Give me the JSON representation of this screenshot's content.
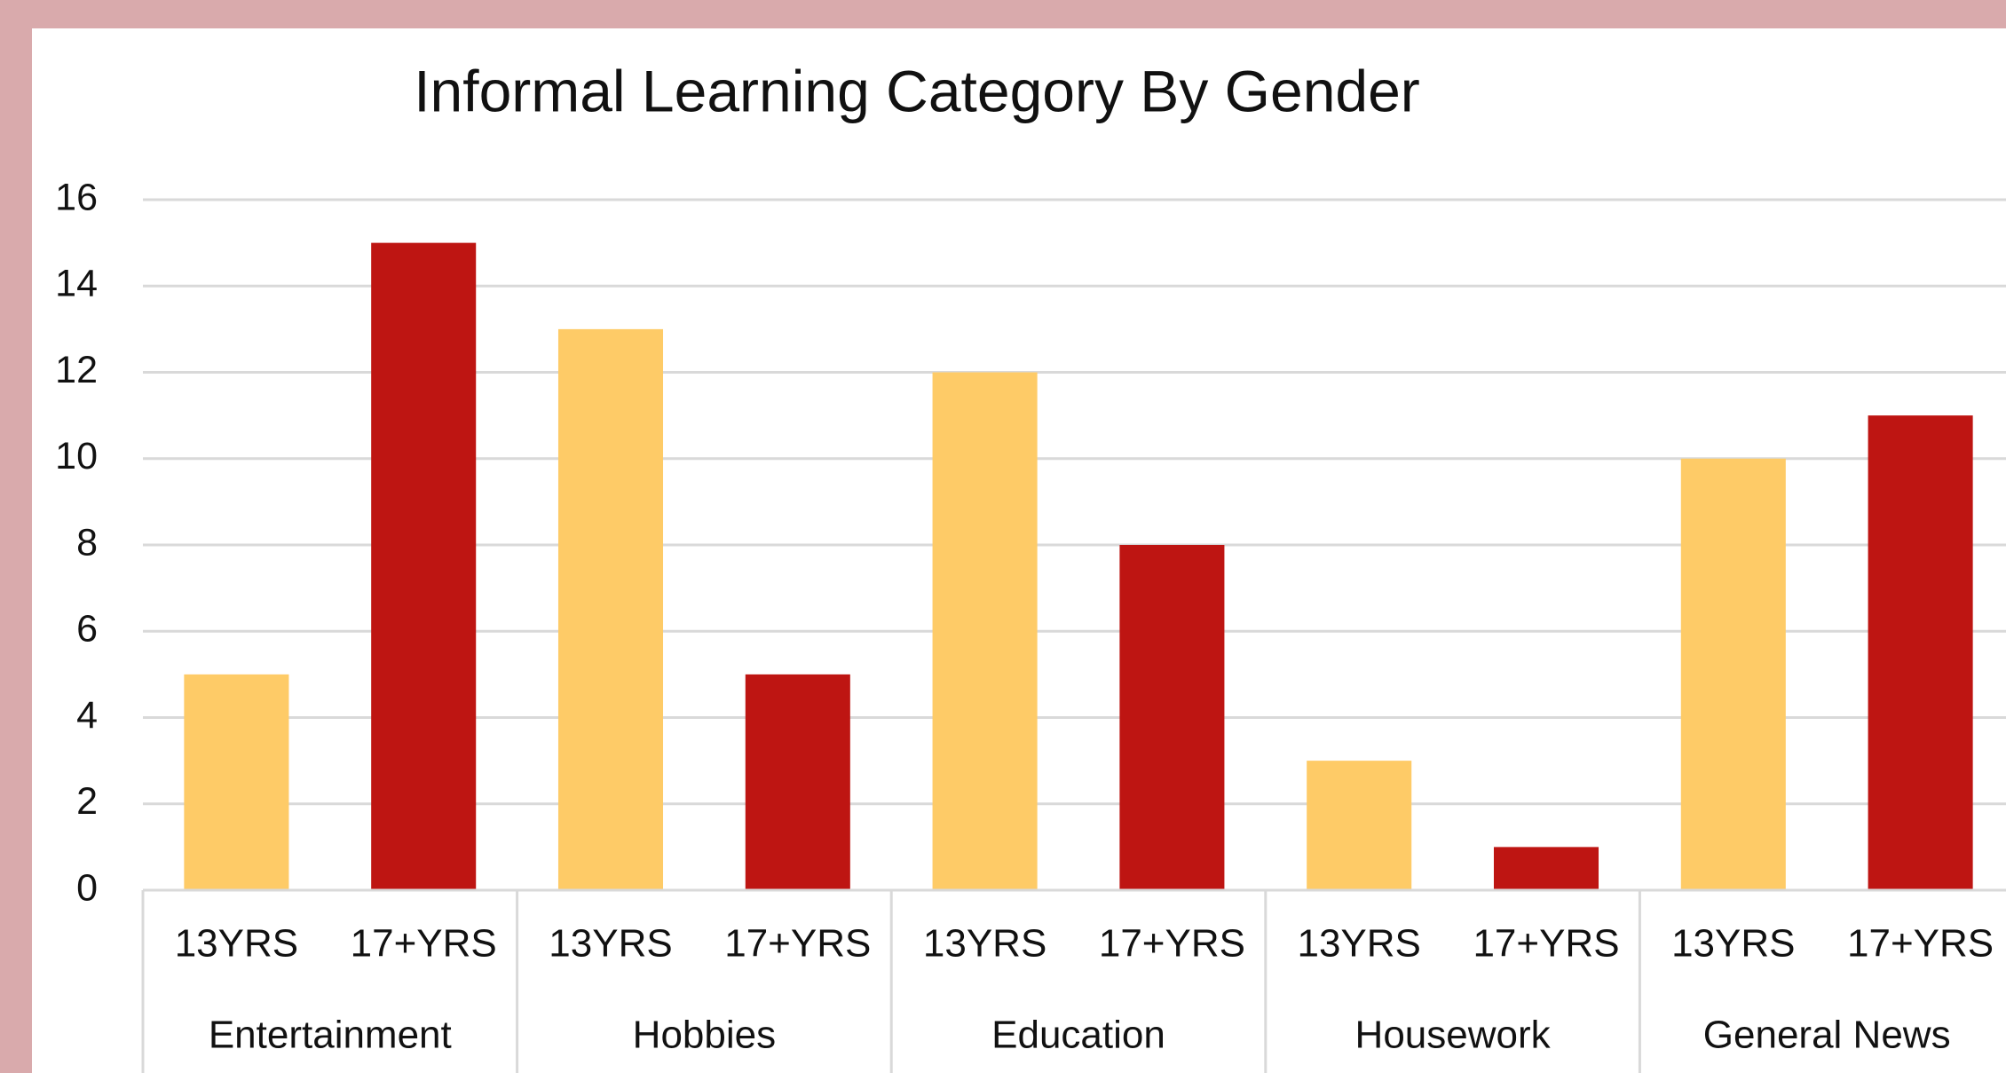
{
  "chart_data": {
    "type": "bar",
    "title": "Informal Learning Category By Gender",
    "categories": [
      "Entertainment",
      "Hobbies",
      "Education",
      "Housework",
      "General News"
    ],
    "series": [
      {
        "name": "13YRS",
        "color": "#fecb67",
        "values": [
          5,
          13,
          12,
          3,
          10
        ]
      },
      {
        "name": "17+YRS",
        "color": "#be1512",
        "values": [
          15,
          5,
          8,
          1,
          11
        ]
      }
    ],
    "ylim": [
      0,
      16
    ],
    "yticks": [
      0,
      2,
      4,
      6,
      8,
      10,
      12,
      14,
      16
    ],
    "grid": true
  }
}
